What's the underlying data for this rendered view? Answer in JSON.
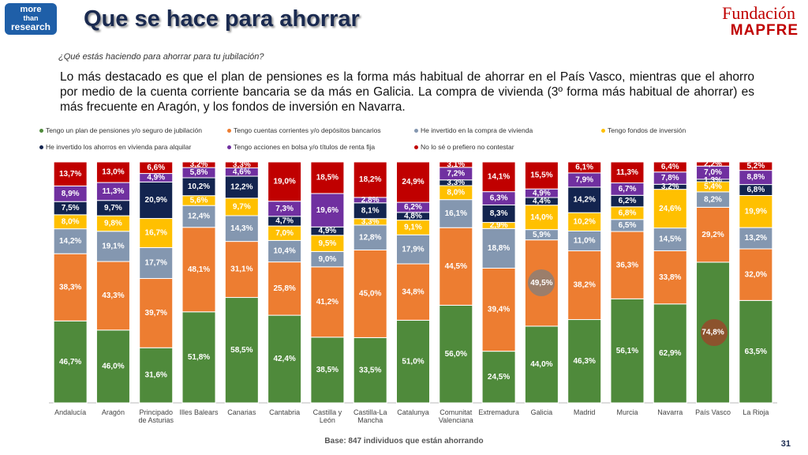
{
  "header": {
    "logo": [
      "more",
      "than",
      "research"
    ],
    "title": "Que se hace para ahorrar",
    "brand": [
      "Fundación",
      "MAPFRE"
    ]
  },
  "question": "¿Qué estás haciendo para ahorrar para tu jubilación?",
  "paragraph": "Lo más destacado es que el plan de pensiones es la forma más habitual de ahorrar en el País Vasco, mientras que el ahorro por medio de la cuenta corriente bancaria se da más en Galicia. La compra de vivienda (3º forma más habitual de ahorrar) es más frecuente en Aragón, y los fondos de inversión en Navarra.",
  "footer": "Base: 847 individuos que están ahorrando",
  "page_number": "31",
  "chart_data": {
    "type": "stacked_bar",
    "categories": [
      "Andalucía",
      "Aragón",
      "Principado de Asturias",
      "Illes Balears",
      "Canarias",
      "Cantabria",
      "Castilla y León",
      "Castilla-La Mancha",
      "Catalunya",
      "Comunitat Valenciana",
      "Extremadura",
      "Galicia",
      "Madrid",
      "Murcia",
      "Navarra",
      "País Vasco",
      "La Rioja"
    ],
    "series": [
      {
        "name": "Tengo un plan  de pensiones  y/o seguro de jubilación",
        "color": "#4f8a3b",
        "values": [
          46.7,
          46.0,
          31.6,
          51.8,
          58.5,
          42.4,
          38.5,
          33.5,
          51.0,
          56.0,
          24.5,
          44.0,
          46.3,
          56.1,
          62.9,
          74.8,
          63.5
        ],
        "value_labels": [
          "46,7%",
          "46,0%",
          "31,6%",
          "51,8%",
          "58,5%",
          "42,4%",
          "38,5%",
          "33,5%",
          "51,0%",
          "56,0%",
          "24,5%",
          "44,0%",
          "46,3%",
          "56,1%",
          "62,9%",
          "74,8%",
          "63,5%"
        ]
      },
      {
        "name": "Tengo cuentas corrientes y/o depósitos bancarios",
        "color": "#ed7d31",
        "values": [
          38.3,
          43.3,
          39.7,
          48.1,
          31.1,
          25.8,
          41.2,
          45.0,
          34.8,
          44.5,
          39.4,
          49.5,
          38.2,
          36.3,
          33.8,
          29.2,
          32.0
        ],
        "value_labels": [
          "38,3%",
          "43,3%",
          "39,7%",
          "48,1%",
          "31,1%",
          "25,8%",
          "41,2%",
          "45,0%",
          "34,8%",
          "44,5%",
          "39,4%",
          "49,5%",
          "38,2%",
          "36,3%",
          "33,8%",
          "29,2%",
          "32,0%"
        ]
      },
      {
        "name": "He invertido en la compra de vivienda",
        "color": "#8497b0",
        "values": [
          14.2,
          19.1,
          17.7,
          12.4,
          14.3,
          10.4,
          9.0,
          12.8,
          17.9,
          16.1,
          18.8,
          5.9,
          11.0,
          6.5,
          14.5,
          8.2,
          13.2
        ],
        "value_labels": [
          "14,2%",
          "19,1%",
          "17,7%",
          "12,4%",
          "14,3%",
          "10,4%",
          "9,0%",
          "12,8%",
          "17,9%",
          "16,1%",
          "18,8%",
          "5,9%",
          "11,0%",
          "6,5%",
          "14,5%",
          "8,2%",
          "13,2%"
        ]
      },
      {
        "name": "Tengo fondos de inversión",
        "color": "#ffc000",
        "values": [
          8.0,
          9.8,
          16.7,
          5.6,
          9.7,
          7.0,
          9.5,
          3.3,
          9.1,
          8.0,
          2.9,
          14.0,
          10.2,
          6.8,
          24.6,
          5.4,
          19.9
        ],
        "value_labels": [
          "8,0%",
          "9,8%",
          "16,7%",
          "5,6%",
          "9,7%",
          "7,0%",
          "9,5%",
          "3,3%",
          "9,1%",
          "8,0%",
          "2,9%",
          "14,0%",
          "10,2%",
          "6,8%",
          "24,6%",
          "5,4%",
          "19,9%"
        ]
      },
      {
        "name": "He invertido los ahorros en vivienda para alquilar",
        "color": "#13244f",
        "values": [
          7.5,
          9.7,
          20.9,
          10.2,
          12.2,
          4.7,
          4.9,
          8.1,
          4.8,
          3.3,
          8.3,
          4.4,
          14.2,
          6.2,
          3.2,
          1.3,
          6.8
        ],
        "value_labels": [
          "7,5%",
          "9,7%",
          "20,9%",
          "10,2%",
          "12,2%",
          "4,7%",
          "4,9%",
          "8,1%",
          "4,8%",
          "3,3%",
          "8,3%",
          "4,4%",
          "14,2%",
          "6,2%",
          "3,2%",
          "1,3%",
          "6,8%"
        ]
      },
      {
        "name": "Tengo acciones en bolsa y/o títulos de renta fija",
        "color": "#7030a0",
        "values": [
          8.9,
          11.3,
          4.9,
          5.8,
          4.6,
          7.3,
          19.6,
          2.8,
          6.2,
          7.2,
          6.3,
          4.9,
          7.9,
          6.7,
          7.8,
          7.0,
          8.8
        ],
        "value_labels": [
          "8,9%",
          "11,3%",
          "4,9%",
          "5,8%",
          "4,6%",
          "7,3%",
          "19,6%",
          "2,8%",
          "6,2%",
          "7,2%",
          "6,3%",
          "4,9%",
          "7,9%",
          "6,7%",
          "7,8%",
          "7,0%",
          "8,8%"
        ]
      },
      {
        "name": "No lo sé o prefiero no contestar",
        "color": "#c00000",
        "values": [
          13.7,
          13.0,
          6.6,
          3.2,
          3.3,
          19.0,
          18.5,
          18.2,
          24.9,
          3.1,
          14.1,
          15.5,
          6.1,
          11.3,
          6.4,
          2.2,
          5.2
        ],
        "value_labels": [
          "13,7%",
          "13,0%",
          "6,6%",
          "3,2%",
          "3,3%",
          "19,0%",
          "18,5%",
          "18,2%",
          "24,9%",
          "3,1%",
          "14,1%",
          "15,5%",
          "6,1%",
          "11,3%",
          "6,4%",
          "2,2%",
          "5,2%"
        ]
      }
    ]
  }
}
